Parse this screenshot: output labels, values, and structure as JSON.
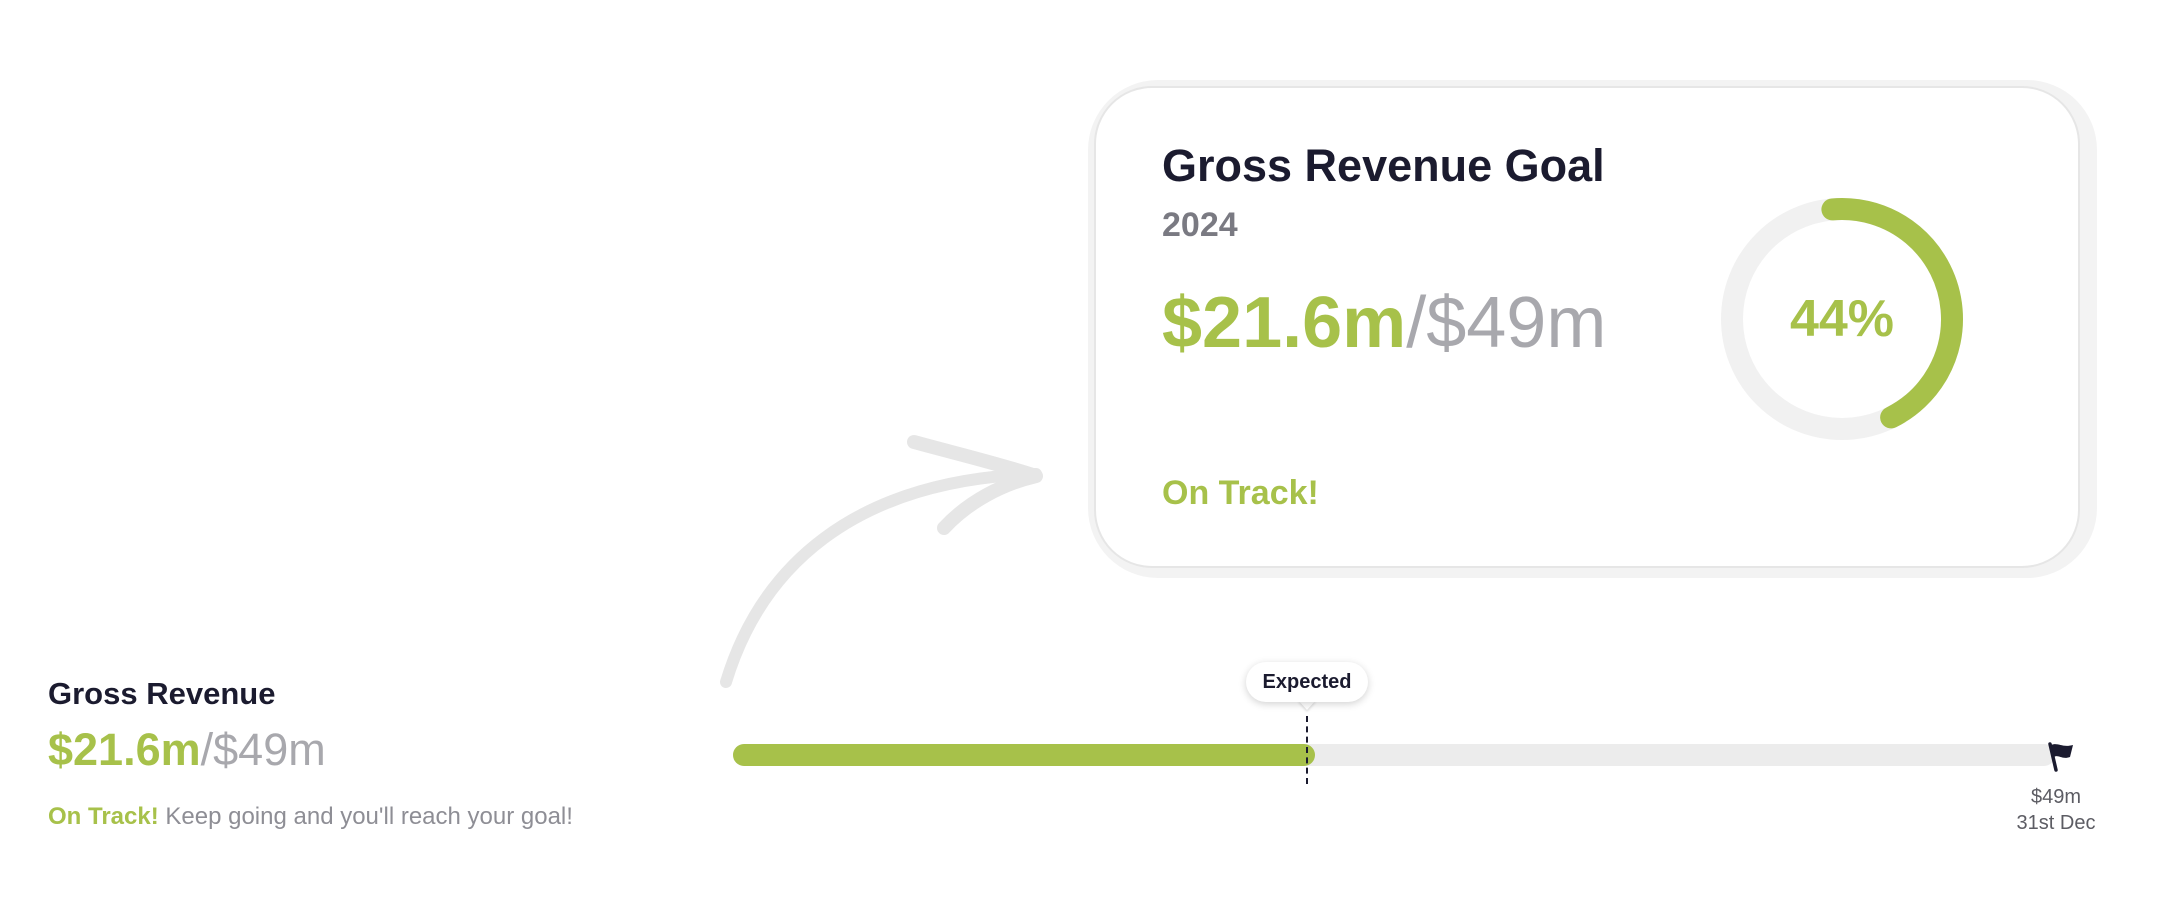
{
  "card": {
    "title": "Gross Revenue Goal",
    "year": "2024",
    "current": "$21.6m",
    "separator": "/",
    "target": "$49m",
    "status": "On Track!",
    "percent_label": "44%",
    "progress_fraction": 0.44
  },
  "summary": {
    "title": "Gross Revenue",
    "current": "$21.6m",
    "separator": "/",
    "target": "$49m",
    "status_strong": "On Track!",
    "status_message": "Keep going and you'll reach your goal!"
  },
  "progress": {
    "fraction": 0.44,
    "expected_label": "Expected",
    "end_amount": "$49m",
    "end_date": "31st Dec"
  },
  "colors": {
    "accent_green": "#a7c14a",
    "track_gray": "#ececec",
    "title_dark": "#1b1b2f",
    "muted_gray": "#a8a8ad"
  },
  "icons": {
    "flag": "flag-icon",
    "arrow": "curved-arrow-icon"
  }
}
